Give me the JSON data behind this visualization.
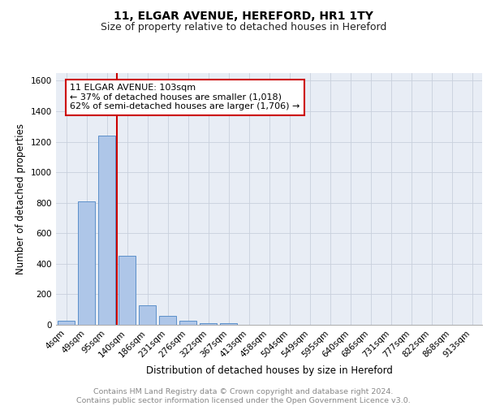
{
  "title": "11, ELGAR AVENUE, HEREFORD, HR1 1TY",
  "subtitle": "Size of property relative to detached houses in Hereford",
  "xlabel": "Distribution of detached houses by size in Hereford",
  "ylabel": "Number of detached properties",
  "footer_line1": "Contains HM Land Registry data © Crown copyright and database right 2024.",
  "footer_line2": "Contains public sector information licensed under the Open Government Licence v3.0.",
  "bar_labels": [
    "4sqm",
    "49sqm",
    "95sqm",
    "140sqm",
    "186sqm",
    "231sqm",
    "276sqm",
    "322sqm",
    "367sqm",
    "413sqm",
    "458sqm",
    "504sqm",
    "549sqm",
    "595sqm",
    "640sqm",
    "686sqm",
    "731sqm",
    "777sqm",
    "822sqm",
    "868sqm",
    "913sqm"
  ],
  "bar_values": [
    25,
    810,
    1240,
    455,
    130,
    58,
    28,
    12,
    8,
    0,
    0,
    0,
    0,
    0,
    0,
    0,
    0,
    0,
    0,
    0,
    0
  ],
  "bar_color": "#aec6e8",
  "bar_edge_color": "#5b8fc9",
  "property_line_x": 2.5,
  "annotation_title": "11 ELGAR AVENUE: 103sqm",
  "annotation_line1": "← 37% of detached houses are smaller (1,018)",
  "annotation_line2": "62% of semi-detached houses are larger (1,706) →",
  "annotation_box_color": "#ffffff",
  "annotation_box_edge_color": "#cc0000",
  "vline_color": "#cc0000",
  "ylim": [
    0,
    1650
  ],
  "yticks": [
    0,
    200,
    400,
    600,
    800,
    1000,
    1200,
    1400,
    1600
  ],
  "grid_color": "#c8d0dc",
  "bg_color": "#e8edf5",
  "title_fontsize": 10,
  "subtitle_fontsize": 9,
  "axis_label_fontsize": 8.5,
  "tick_fontsize": 7.5,
  "annotation_fontsize": 8,
  "footer_fontsize": 6.8
}
